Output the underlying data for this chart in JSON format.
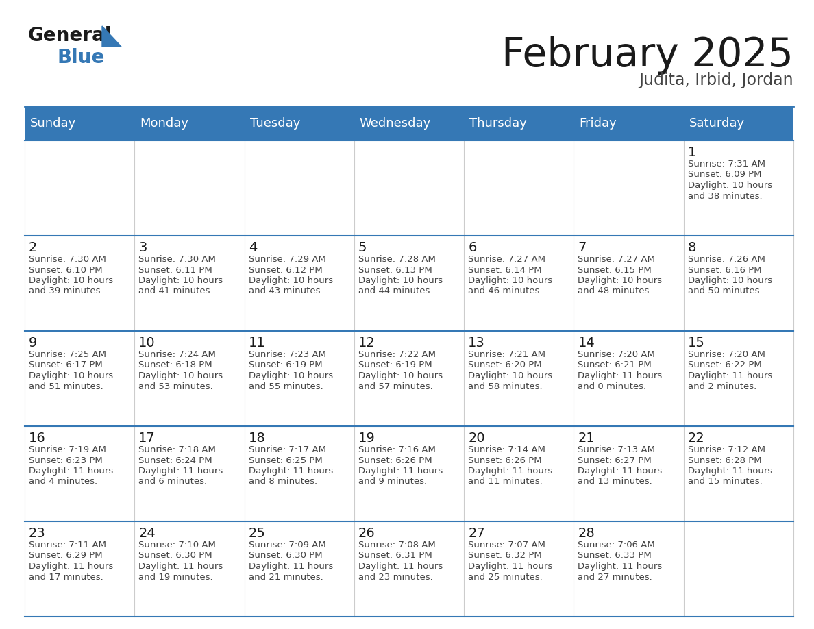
{
  "title": "February 2025",
  "subtitle": "Judita, Irbid, Jordan",
  "header_color": "#3578B5",
  "header_text_color": "#FFFFFF",
  "day_names": [
    "Sunday",
    "Monday",
    "Tuesday",
    "Wednesday",
    "Thursday",
    "Friday",
    "Saturday"
  ],
  "background_color": "#FFFFFF",
  "grid_line_color": "#3578B5",
  "title_color": "#1a1a1a",
  "subtitle_color": "#444444",
  "day_num_color": "#1a1a1a",
  "cell_text_color": "#444444",
  "calendar": [
    [
      null,
      null,
      null,
      null,
      null,
      null,
      {
        "day": 1,
        "sunrise": "7:31 AM",
        "sunset": "6:09 PM",
        "daylight_line1": "Daylight: 10 hours",
        "daylight_line2": "and 38 minutes."
      }
    ],
    [
      {
        "day": 2,
        "sunrise": "7:30 AM",
        "sunset": "6:10 PM",
        "daylight_line1": "Daylight: 10 hours",
        "daylight_line2": "and 39 minutes."
      },
      {
        "day": 3,
        "sunrise": "7:30 AM",
        "sunset": "6:11 PM",
        "daylight_line1": "Daylight: 10 hours",
        "daylight_line2": "and 41 minutes."
      },
      {
        "day": 4,
        "sunrise": "7:29 AM",
        "sunset": "6:12 PM",
        "daylight_line1": "Daylight: 10 hours",
        "daylight_line2": "and 43 minutes."
      },
      {
        "day": 5,
        "sunrise": "7:28 AM",
        "sunset": "6:13 PM",
        "daylight_line1": "Daylight: 10 hours",
        "daylight_line2": "and 44 minutes."
      },
      {
        "day": 6,
        "sunrise": "7:27 AM",
        "sunset": "6:14 PM",
        "daylight_line1": "Daylight: 10 hours",
        "daylight_line2": "and 46 minutes."
      },
      {
        "day": 7,
        "sunrise": "7:27 AM",
        "sunset": "6:15 PM",
        "daylight_line1": "Daylight: 10 hours",
        "daylight_line2": "and 48 minutes."
      },
      {
        "day": 8,
        "sunrise": "7:26 AM",
        "sunset": "6:16 PM",
        "daylight_line1": "Daylight: 10 hours",
        "daylight_line2": "and 50 minutes."
      }
    ],
    [
      {
        "day": 9,
        "sunrise": "7:25 AM",
        "sunset": "6:17 PM",
        "daylight_line1": "Daylight: 10 hours",
        "daylight_line2": "and 51 minutes."
      },
      {
        "day": 10,
        "sunrise": "7:24 AM",
        "sunset": "6:18 PM",
        "daylight_line1": "Daylight: 10 hours",
        "daylight_line2": "and 53 minutes."
      },
      {
        "day": 11,
        "sunrise": "7:23 AM",
        "sunset": "6:19 PM",
        "daylight_line1": "Daylight: 10 hours",
        "daylight_line2": "and 55 minutes."
      },
      {
        "day": 12,
        "sunrise": "7:22 AM",
        "sunset": "6:19 PM",
        "daylight_line1": "Daylight: 10 hours",
        "daylight_line2": "and 57 minutes."
      },
      {
        "day": 13,
        "sunrise": "7:21 AM",
        "sunset": "6:20 PM",
        "daylight_line1": "Daylight: 10 hours",
        "daylight_line2": "and 58 minutes."
      },
      {
        "day": 14,
        "sunrise": "7:20 AM",
        "sunset": "6:21 PM",
        "daylight_line1": "Daylight: 11 hours",
        "daylight_line2": "and 0 minutes."
      },
      {
        "day": 15,
        "sunrise": "7:20 AM",
        "sunset": "6:22 PM",
        "daylight_line1": "Daylight: 11 hours",
        "daylight_line2": "and 2 minutes."
      }
    ],
    [
      {
        "day": 16,
        "sunrise": "7:19 AM",
        "sunset": "6:23 PM",
        "daylight_line1": "Daylight: 11 hours",
        "daylight_line2": "and 4 minutes."
      },
      {
        "day": 17,
        "sunrise": "7:18 AM",
        "sunset": "6:24 PM",
        "daylight_line1": "Daylight: 11 hours",
        "daylight_line2": "and 6 minutes."
      },
      {
        "day": 18,
        "sunrise": "7:17 AM",
        "sunset": "6:25 PM",
        "daylight_line1": "Daylight: 11 hours",
        "daylight_line2": "and 8 minutes."
      },
      {
        "day": 19,
        "sunrise": "7:16 AM",
        "sunset": "6:26 PM",
        "daylight_line1": "Daylight: 11 hours",
        "daylight_line2": "and 9 minutes."
      },
      {
        "day": 20,
        "sunrise": "7:14 AM",
        "sunset": "6:26 PM",
        "daylight_line1": "Daylight: 11 hours",
        "daylight_line2": "and 11 minutes."
      },
      {
        "day": 21,
        "sunrise": "7:13 AM",
        "sunset": "6:27 PM",
        "daylight_line1": "Daylight: 11 hours",
        "daylight_line2": "and 13 minutes."
      },
      {
        "day": 22,
        "sunrise": "7:12 AM",
        "sunset": "6:28 PM",
        "daylight_line1": "Daylight: 11 hours",
        "daylight_line2": "and 15 minutes."
      }
    ],
    [
      {
        "day": 23,
        "sunrise": "7:11 AM",
        "sunset": "6:29 PM",
        "daylight_line1": "Daylight: 11 hours",
        "daylight_line2": "and 17 minutes."
      },
      {
        "day": 24,
        "sunrise": "7:10 AM",
        "sunset": "6:30 PM",
        "daylight_line1": "Daylight: 11 hours",
        "daylight_line2": "and 19 minutes."
      },
      {
        "day": 25,
        "sunrise": "7:09 AM",
        "sunset": "6:30 PM",
        "daylight_line1": "Daylight: 11 hours",
        "daylight_line2": "and 21 minutes."
      },
      {
        "day": 26,
        "sunrise": "7:08 AM",
        "sunset": "6:31 PM",
        "daylight_line1": "Daylight: 11 hours",
        "daylight_line2": "and 23 minutes."
      },
      {
        "day": 27,
        "sunrise": "7:07 AM",
        "sunset": "6:32 PM",
        "daylight_line1": "Daylight: 11 hours",
        "daylight_line2": "and 25 minutes."
      },
      {
        "day": 28,
        "sunrise": "7:06 AM",
        "sunset": "6:33 PM",
        "daylight_line1": "Daylight: 11 hours",
        "daylight_line2": "and 27 minutes."
      },
      null
    ]
  ]
}
